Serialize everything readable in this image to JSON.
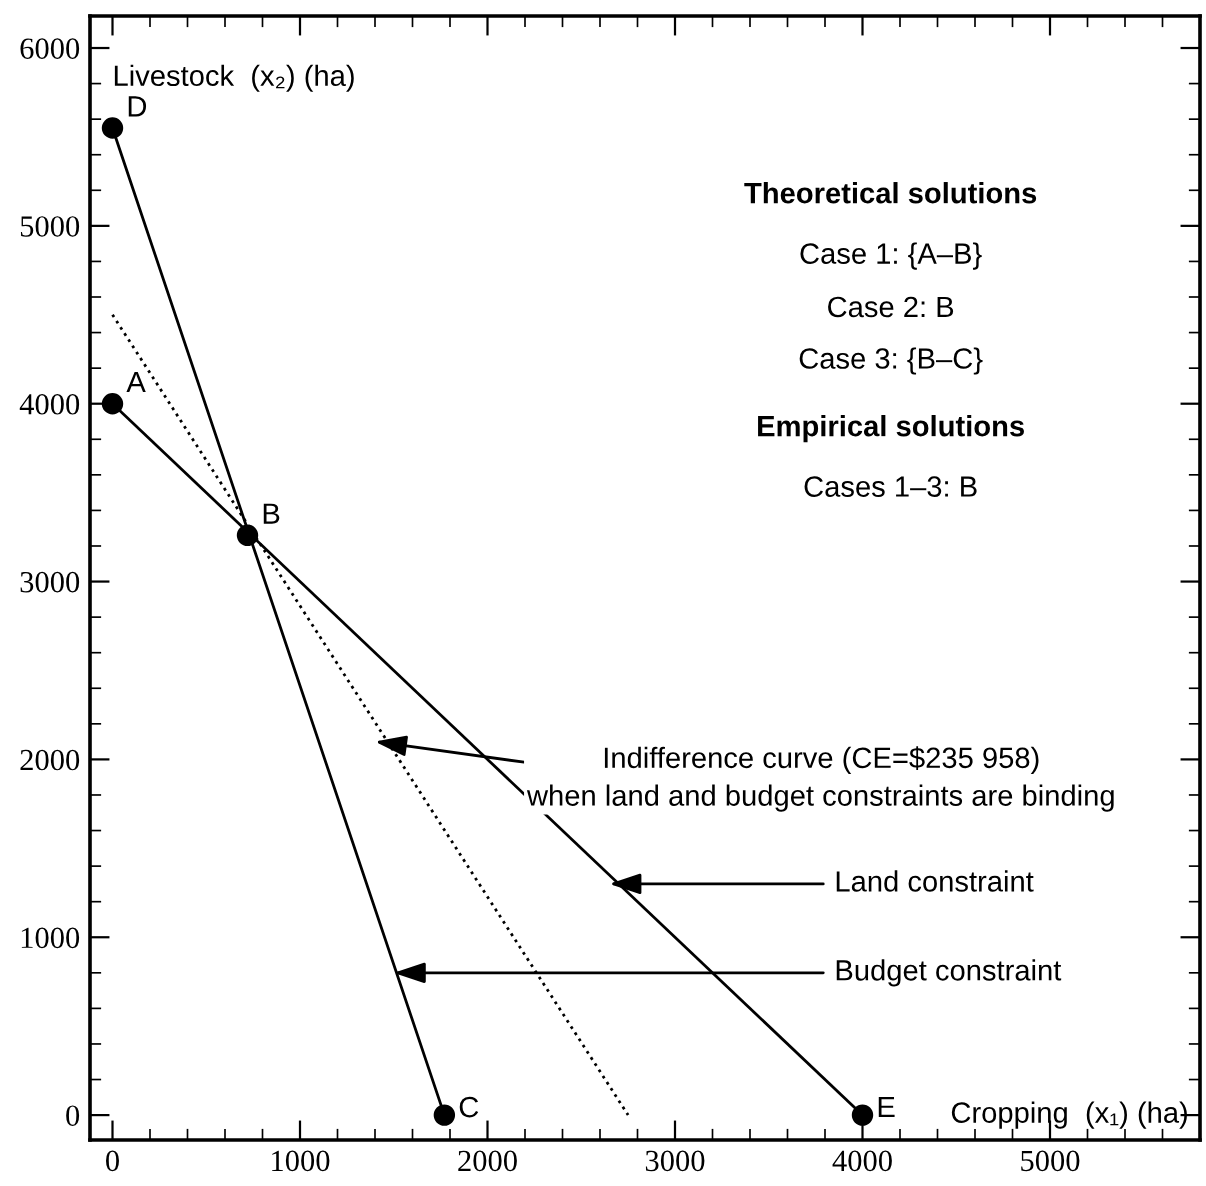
{
  "chart_data": {
    "type": "line",
    "xlabel": "Cropping  (x₁) (ha)",
    "ylabel": "Livestock  (x₂) (ha)",
    "xlim": [
      -120,
      5800
    ],
    "ylim": [
      -140,
      6180
    ],
    "xticks": [
      0,
      1000,
      2000,
      3000,
      4000,
      5000
    ],
    "yticks": [
      0,
      1000,
      2000,
      3000,
      4000,
      5000,
      6000
    ],
    "grid": false,
    "series": [
      {
        "color": "#000000",
        "x": [
          0,
          4000
        ],
        "values": [
          4000,
          0
        ],
        "line_style": "solid",
        "marker": "none"
      },
      {
        "color": "#000000",
        "x": [
          0,
          1770
        ],
        "values": [
          5550,
          0
        ],
        "line_style": "solid",
        "marker": "none"
      },
      {
        "color": "#000000",
        "x": [
          0,
          2750
        ],
        "values": [
          4500,
          0
        ],
        "line_style": "dotted",
        "marker": "none"
      },
      {
        "type": "scatter",
        "color": "#000000",
        "x": [
          0,
          720,
          1770,
          0,
          4000
        ],
        "values": [
          4000,
          3260,
          0,
          5550,
          0
        ],
        "marker": "circle"
      }
    ],
    "annotations": [
      {
        "text": "A",
        "x": 0,
        "y": 4000
      },
      {
        "text": "B",
        "x": 720,
        "y": 3260
      },
      {
        "text": "C",
        "x": 1770,
        "y": 0
      },
      {
        "text": "D",
        "x": 0,
        "y": 5550
      },
      {
        "text": "E",
        "x": 4000,
        "y": 0
      },
      {
        "text": "Indifference curve (CE=$235 958)\nwhen land and budget constraints are binding",
        "x": 1400,
        "y": 2100
      },
      {
        "text": "Land constraint",
        "x": 2650,
        "y": 1300
      },
      {
        "text": "Budget constraint",
        "x": 1500,
        "y": 800
      },
      "Theoretical solutions",
      "Case 1: {A–B}",
      "Case 2: B",
      "Case 3: {B–C}",
      "Empirical solutions",
      "Cases 1–3: B"
    ]
  }
}
